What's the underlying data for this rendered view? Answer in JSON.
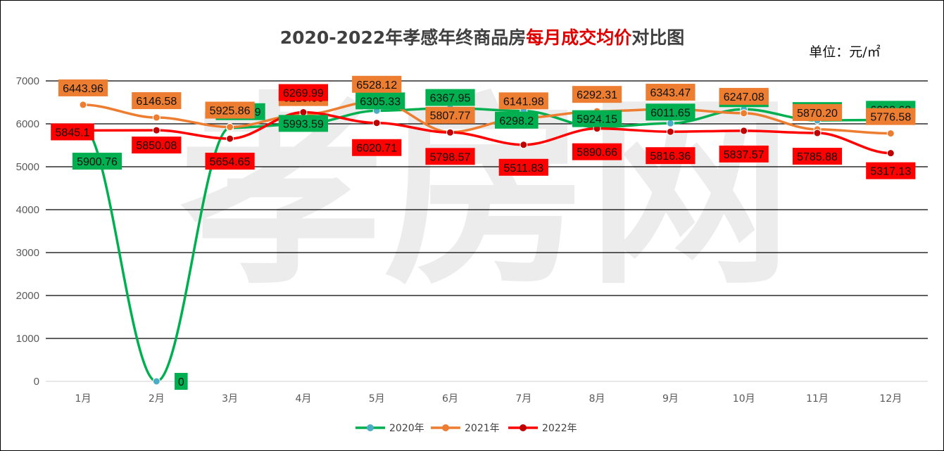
{
  "chart_data": {
    "type": "line",
    "title_parts": [
      {
        "text": "2020-2022年孝感年终商品房",
        "color": "#404040"
      },
      {
        "text": "每月成交均价",
        "color": "#e00000"
      },
      {
        "text": "对比图",
        "color": "#404040"
      }
    ],
    "unit_label": "单位：元/㎡",
    "watermark": "孝房网",
    "categories": [
      "1月",
      "2月",
      "3月",
      "4月",
      "5月",
      "6月",
      "7月",
      "8月",
      "9月",
      "10月",
      "11月",
      "12月"
    ],
    "y_ticks": [
      "0",
      "1000",
      "2000",
      "3000",
      "4000",
      "5000",
      "6000",
      "7000"
    ],
    "ylim": [
      0,
      7000
    ],
    "grid": true,
    "legend_position": "bottom",
    "series": [
      {
        "name": "2020年",
        "color": "#00b050",
        "marker_color": "#4bacc6",
        "values": [
          5900.76,
          0,
          5906.29,
          5993.59,
          6305.33,
          6367.95,
          6298.2,
          5924.15,
          6011.65,
          6340.1,
          6079.65,
          6092.68
        ],
        "labels": [
          "5900.76",
          "0",
          "5906.29",
          "5993.59",
          "6305.33",
          "6367.95",
          "6298.2",
          "5924.15",
          "6011.65",
          "6340.10",
          "6079.65",
          "6092.68"
        ]
      },
      {
        "name": "2021年",
        "color": "#ed7d31",
        "marker_color": "#ed7d31",
        "values": [
          6443.96,
          6146.58,
          5925.86,
          6218.08,
          6528.12,
          5807.77,
          6141.98,
          6292.31,
          6343.47,
          6247.08,
          5870.2,
          5776.58
        ],
        "labels": [
          "6443.96",
          "6146.58",
          "5925.86",
          "6218.08",
          "6528.12",
          "5807.77",
          "6141.98",
          "6292.31",
          "6343.47",
          "6247.08",
          "5870.20",
          "5776.58"
        ]
      },
      {
        "name": "2022年",
        "color": "#ff0000",
        "marker_color": "#c00000",
        "values": [
          5845.1,
          5850.08,
          5654.65,
          6269.99,
          6020.71,
          5798.57,
          5511.83,
          5890.66,
          5816.36,
          5837.57,
          5785.88,
          5317.13
        ],
        "labels": [
          "5845.1",
          "5850.08",
          "5654.65",
          "6269.99",
          "6020.71",
          "5798.57",
          "5511.83",
          "5890.66",
          "5816.36",
          "5837.57",
          "5785.88",
          "5317.13"
        ]
      }
    ]
  }
}
